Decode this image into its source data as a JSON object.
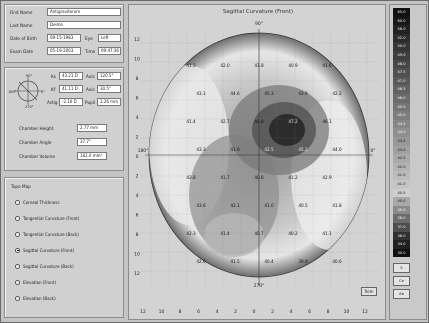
{
  "patient": {
    "fields": [
      {
        "label": "First Name",
        "value": "Antigravitorum"
      },
      {
        "label": "Last Name",
        "value": "Deimo"
      },
      {
        "label": "Date of Birth",
        "value": "09-15-1983",
        "label2": "Eye",
        "value2": "Left"
      },
      {
        "label": "Exam Date",
        "value": "05-19-2003",
        "label2": "Time",
        "value2": "09:47:36"
      }
    ]
  },
  "position": {
    "axis_labels": [
      "90°",
      "180°",
      "0°",
      "270°"
    ],
    "fields": [
      {
        "label": "Ks",
        "value": "43.21 D",
        "label2": "Axis",
        "value2": "120.5°"
      },
      {
        "label": "Kf",
        "value": "41.11 D",
        "label2": "Axis",
        "value2": "30.5°"
      },
      {
        "label": "Astig",
        "value": "-2.10 D",
        "label2": "Pupil",
        "value2": "3.26 mm"
      }
    ],
    "chamber": [
      {
        "label": "Chamber Height",
        "value": "2.77 mm"
      },
      {
        "label": "Chamber Angle",
        "value": "37.7°"
      },
      {
        "label": "Chamber Volume",
        "value": "182.0 mm³"
      }
    ]
  },
  "map_group": {
    "title": "Topo Map",
    "options": [
      {
        "label": "Corneal Thickness",
        "selected": false
      },
      {
        "label": "Tangential Curvature (Front)",
        "selected": false
      },
      {
        "label": "Tangential Curvature (Back)",
        "selected": false
      },
      {
        "label": "Sagittal Curvature (Front)",
        "selected": true
      },
      {
        "label": "Sagittal Curvature (Back)",
        "selected": false
      },
      {
        "label": "Elevation (Front)",
        "selected": false
      },
      {
        "label": "Elevation (Back)",
        "selected": false
      }
    ]
  },
  "main": {
    "title": "Sagittal Curvature (Front)",
    "x_ticks": [
      "12",
      "10",
      "8",
      "6",
      "4",
      "2",
      "0",
      "2",
      "4",
      "6",
      "8",
      "10",
      "12"
    ],
    "y_ticks": [
      "12",
      "10",
      "8",
      "6",
      "4",
      "2",
      "0",
      "2",
      "4",
      "6",
      "8",
      "10",
      "12"
    ],
    "angle_labels": [
      "90°",
      "180°",
      "0°",
      "270°"
    ],
    "button_label": "Rom",
    "map_values": [
      "41.3",
      "42.0",
      "41.8",
      "40.9",
      "41.6",
      "43.1",
      "44.6",
      "45.3",
      "43.9",
      "42.2",
      "41.4",
      "42.7",
      "44.8",
      "47.2",
      "46.1",
      "43.3",
      "41.9",
      "42.5",
      "45.2",
      "44.0",
      "42.8",
      "41.7",
      "40.8",
      "41.2",
      "42.9",
      "43.6",
      "42.1",
      "41.0",
      "40.5",
      "41.8",
      "42.3",
      "41.4",
      "40.7",
      "40.2",
      "41.1",
      "42.6",
      "41.5",
      "40.4",
      "39.9",
      "40.6"
    ]
  },
  "scale": {
    "entries": [
      {
        "label": "65.0",
        "color": "#101010"
      },
      {
        "label": "60.0",
        "color": "#181818"
      },
      {
        "label": "56.0",
        "color": "#222222"
      },
      {
        "label": "52.0",
        "color": "#2c2c2c"
      },
      {
        "label": "50.0",
        "color": "#353535"
      },
      {
        "label": "49.0",
        "color": "#3e3e3e"
      },
      {
        "label": "48.0",
        "color": "#474747"
      },
      {
        "label": "47.5",
        "color": "#505050"
      },
      {
        "label": "47.0",
        "color": "#595959"
      },
      {
        "label": "46.5",
        "color": "#626262"
      },
      {
        "label": "46.0",
        "color": "#6b6b6b"
      },
      {
        "label": "45.5",
        "color": "#747474"
      },
      {
        "label": "45.0",
        "color": "#7d7d7d"
      },
      {
        "label": "44.5",
        "color": "#868686"
      },
      {
        "label": "44.0",
        "color": "#8f8f8f"
      },
      {
        "label": "43.5",
        "color": "#989898"
      },
      {
        "label": "43.0",
        "color": "#a1a1a1"
      },
      {
        "label": "42.5",
        "color": "#aaaaaa"
      },
      {
        "label": "42.0",
        "color": "#b3b3b3"
      },
      {
        "label": "41.5",
        "color": "#bcbcbc"
      },
      {
        "label": "41.0",
        "color": "#c5c5c5"
      },
      {
        "label": "40.5",
        "color": "#cecece"
      },
      {
        "label": "40.0",
        "color": "#a8a8a8"
      },
      {
        "label": "39.0",
        "color": "#8a8a8a"
      },
      {
        "label": "38.0",
        "color": "#6c6c6c"
      },
      {
        "label": "37.0",
        "color": "#4e4e4e"
      },
      {
        "label": "36.0",
        "color": "#303030"
      },
      {
        "label": "34.0",
        "color": "#202020"
      },
      {
        "label": "30.0",
        "color": "#101010"
      }
    ],
    "buttons": [
      "S",
      "Ce",
      "Ab"
    ]
  }
}
